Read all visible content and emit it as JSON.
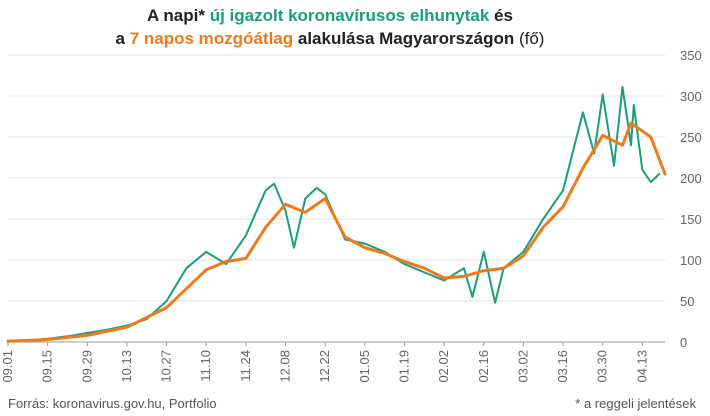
{
  "title": {
    "l1_a": "A napi* ",
    "l1_b": "új igazolt koronavírusos elhunytak",
    "l1_c": " és",
    "l2_a": "a ",
    "l2_b": "7 napos mozgóátlag",
    "l2_c": " alakulása Magyarországon",
    "l2_d": " (fő)"
  },
  "footer": {
    "source": "Forrás: koronavirus.gov.hu, Portfolio",
    "note": "* a reggeli jelentések"
  },
  "colors": {
    "daily": "#1a9e7d",
    "avg": "#f07a1a",
    "grid": "#e2e2e2",
    "axis": "#666666"
  },
  "chart_data": {
    "type": "line",
    "x_start": "2020-09-01",
    "x_end": "2021-04-21",
    "x_tick_labels": [
      "09.01",
      "09.15",
      "09.29",
      "10.13",
      "10.27",
      "11.10",
      "11.24",
      "12.08",
      "12.22",
      "01.05",
      "01.19",
      "02.02",
      "02.16",
      "03.02",
      "03.16",
      "03.30",
      "04.13"
    ],
    "ylim": [
      0,
      350
    ],
    "y_ticks": [
      0,
      50,
      100,
      150,
      200,
      250,
      300,
      350
    ],
    "grid": "horizontal",
    "series": [
      {
        "key": "daily",
        "points": [
          [
            "2020-09-01",
            1
          ],
          [
            "2020-09-08",
            2
          ],
          [
            "2020-09-15",
            4
          ],
          [
            "2020-09-22",
            7
          ],
          [
            "2020-09-29",
            11
          ],
          [
            "2020-10-06",
            15
          ],
          [
            "2020-10-13",
            20
          ],
          [
            "2020-10-20",
            28
          ],
          [
            "2020-10-27",
            50
          ],
          [
            "2020-11-03",
            90
          ],
          [
            "2020-11-10",
            110
          ],
          [
            "2020-11-17",
            95
          ],
          [
            "2020-11-24",
            130
          ],
          [
            "2020-12-01",
            185
          ],
          [
            "2020-12-04",
            193
          ],
          [
            "2020-12-08",
            160
          ],
          [
            "2020-12-11",
            115
          ],
          [
            "2020-12-15",
            175
          ],
          [
            "2020-12-19",
            188
          ],
          [
            "2020-12-22",
            180
          ],
          [
            "2020-12-29",
            125
          ],
          [
            "2021-01-05",
            120
          ],
          [
            "2021-01-12",
            110
          ],
          [
            "2021-01-19",
            95
          ],
          [
            "2021-01-26",
            85
          ],
          [
            "2021-02-02",
            75
          ],
          [
            "2021-02-09",
            90
          ],
          [
            "2021-02-12",
            55
          ],
          [
            "2021-02-16",
            110
          ],
          [
            "2021-02-20",
            48
          ],
          [
            "2021-02-23",
            90
          ],
          [
            "2021-03-02",
            110
          ],
          [
            "2021-03-09",
            150
          ],
          [
            "2021-03-16",
            185
          ],
          [
            "2021-03-23",
            280
          ],
          [
            "2021-03-27",
            230
          ],
          [
            "2021-03-30",
            302
          ],
          [
            "2021-04-03",
            215
          ],
          [
            "2021-04-06",
            311
          ],
          [
            "2021-04-09",
            240
          ],
          [
            "2021-04-10",
            289
          ],
          [
            "2021-04-13",
            210
          ],
          [
            "2021-04-16",
            195
          ],
          [
            "2021-04-19",
            205
          ]
        ]
      },
      {
        "key": "avg",
        "points": [
          [
            "2020-09-01",
            1
          ],
          [
            "2020-09-15",
            3
          ],
          [
            "2020-09-29",
            8
          ],
          [
            "2020-10-13",
            18
          ],
          [
            "2020-10-27",
            42
          ],
          [
            "2020-11-03",
            65
          ],
          [
            "2020-11-10",
            88
          ],
          [
            "2020-11-17",
            98
          ],
          [
            "2020-11-24",
            102
          ],
          [
            "2020-12-01",
            140
          ],
          [
            "2020-12-08",
            168
          ],
          [
            "2020-12-15",
            158
          ],
          [
            "2020-12-22",
            175
          ],
          [
            "2020-12-29",
            128
          ],
          [
            "2021-01-05",
            115
          ],
          [
            "2021-01-12",
            108
          ],
          [
            "2021-01-19",
            98
          ],
          [
            "2021-01-26",
            90
          ],
          [
            "2021-02-02",
            78
          ],
          [
            "2021-02-09",
            80
          ],
          [
            "2021-02-16",
            87
          ],
          [
            "2021-02-23",
            90
          ],
          [
            "2021-03-02",
            105
          ],
          [
            "2021-03-09",
            140
          ],
          [
            "2021-03-16",
            165
          ],
          [
            "2021-03-23",
            212
          ],
          [
            "2021-03-30",
            252
          ],
          [
            "2021-04-06",
            240
          ],
          [
            "2021-04-09",
            267
          ],
          [
            "2021-04-16",
            250
          ],
          [
            "2021-04-21",
            205
          ]
        ]
      }
    ]
  }
}
